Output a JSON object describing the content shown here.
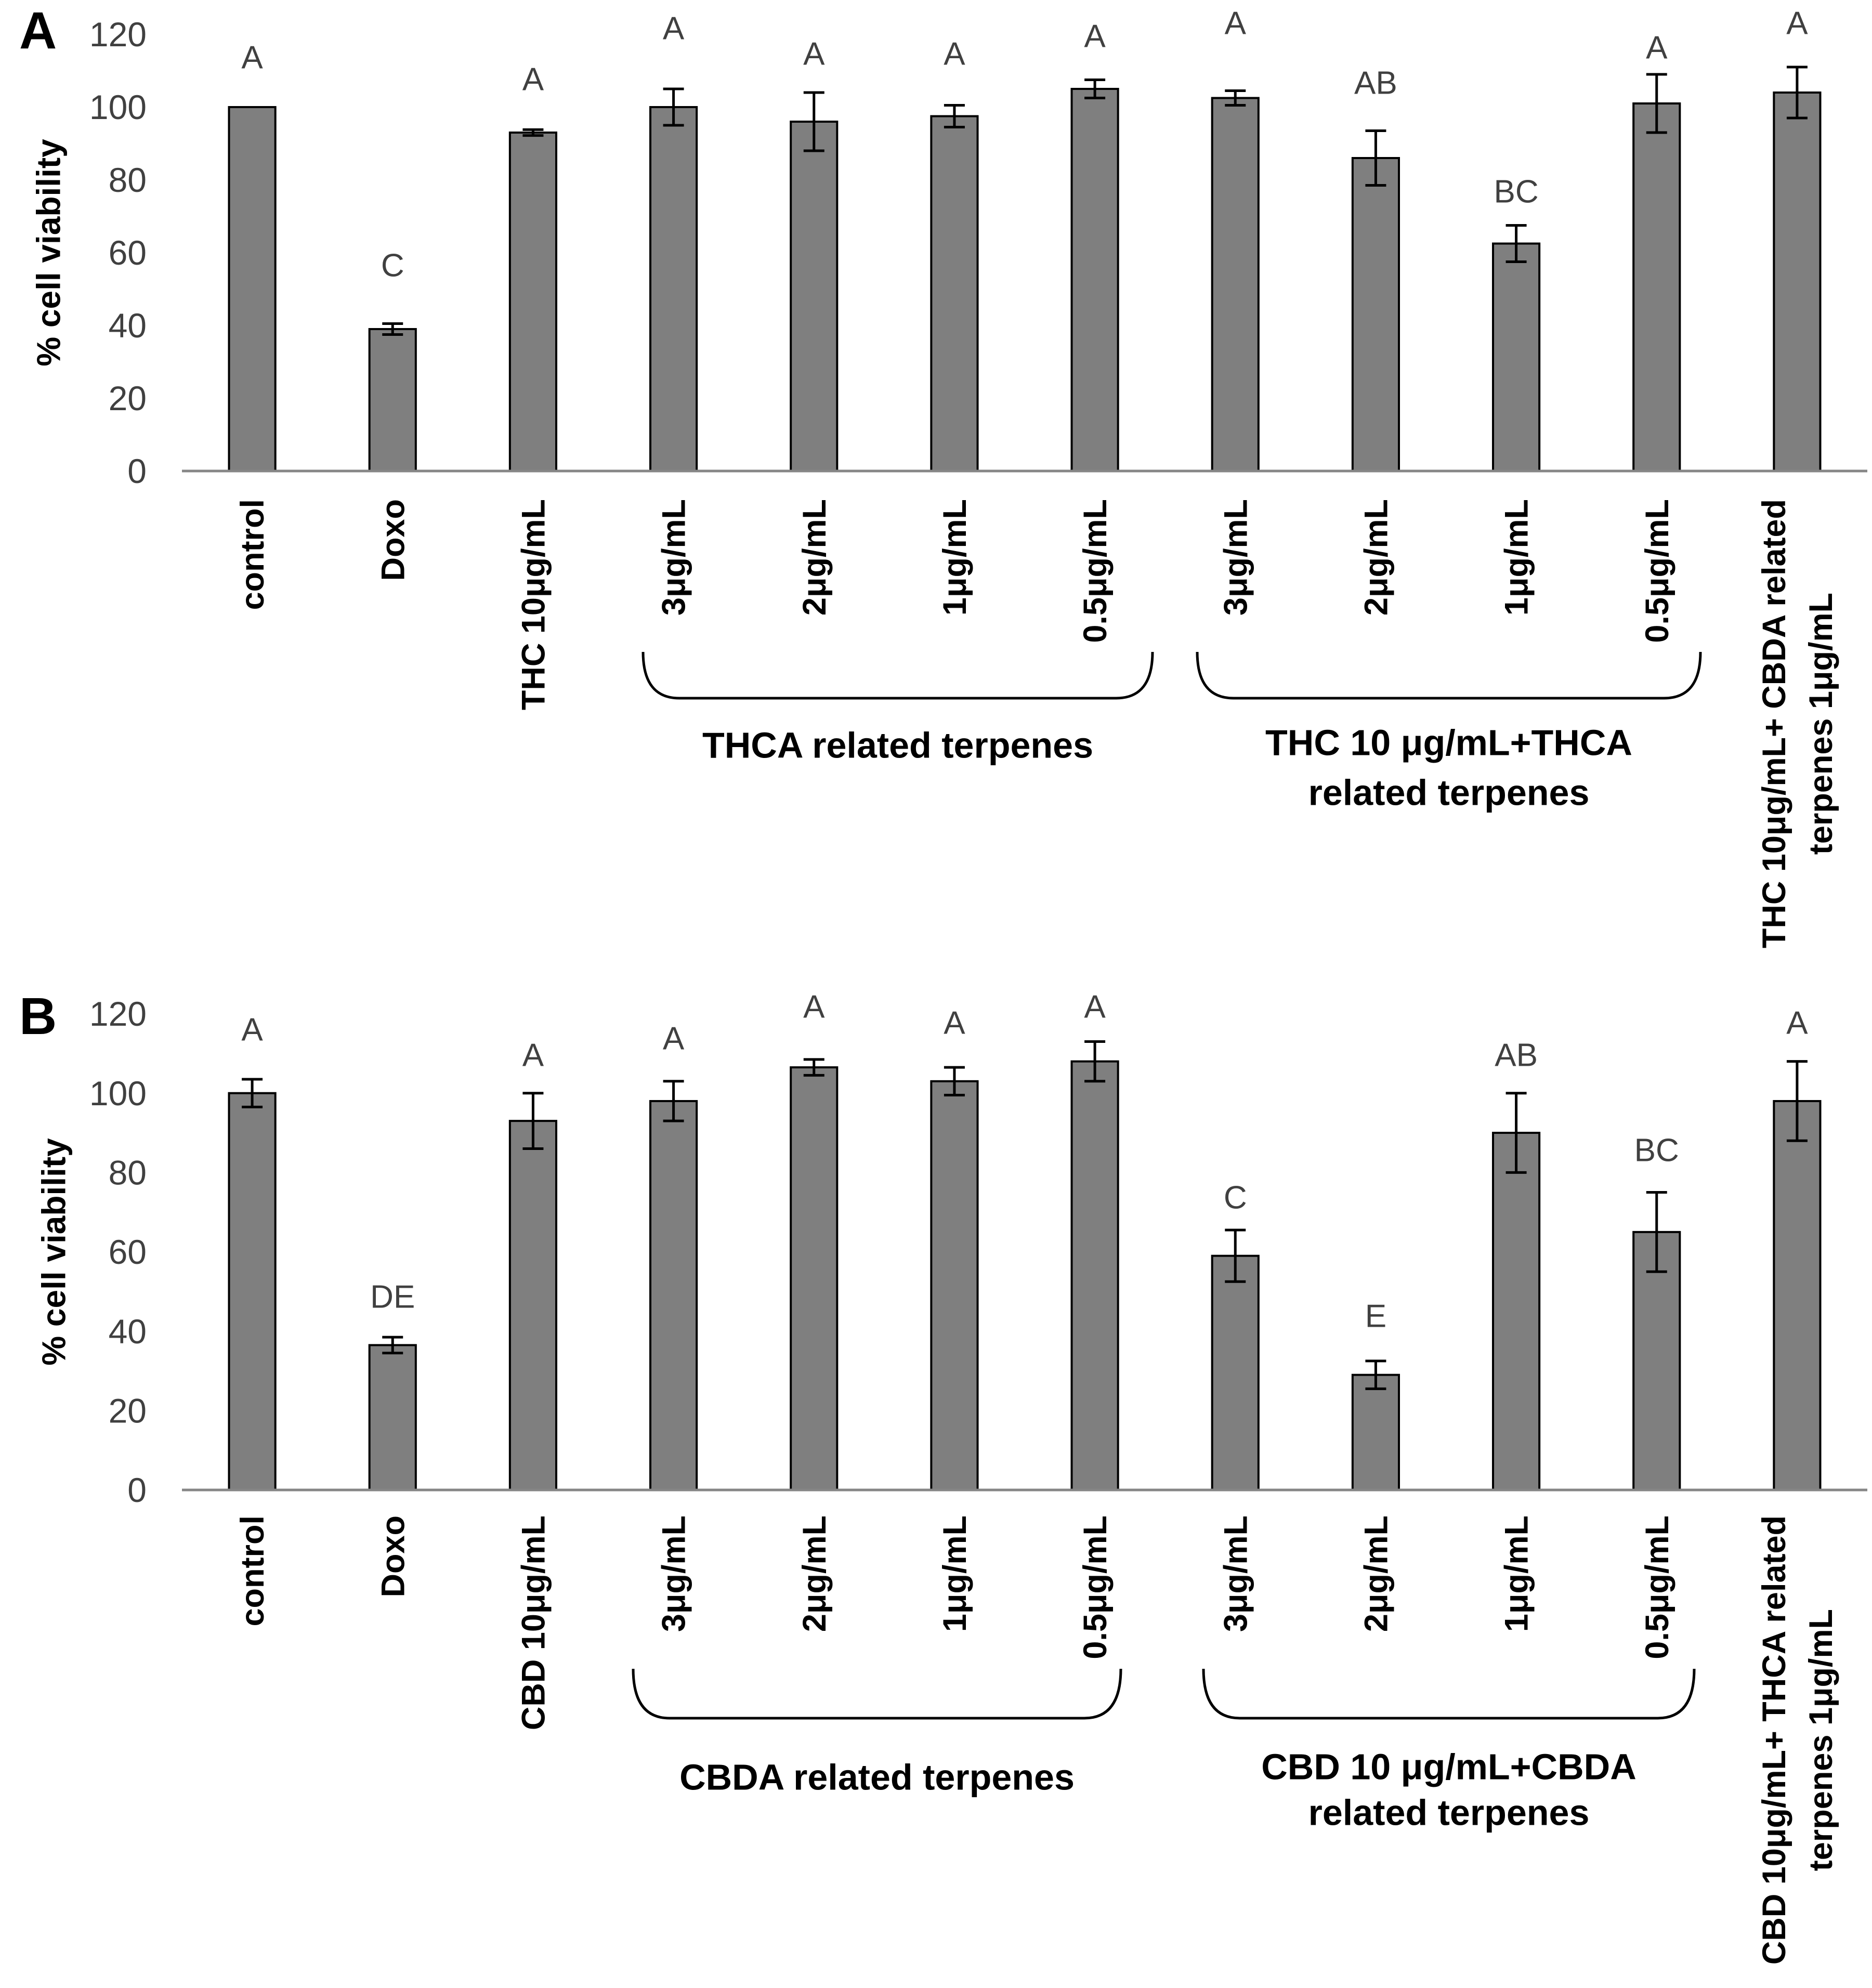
{
  "chart_data": [
    {
      "panel_label": "A",
      "type": "bar",
      "title": "",
      "xlabel": "",
      "ylabel": "% cell viability",
      "ylim": [
        0,
        120
      ],
      "yticks": [
        0,
        20,
        40,
        60,
        80,
        100,
        120
      ],
      "categories": [
        [
          "control"
        ],
        [
          "Doxo"
        ],
        [
          "THC 10μg/mL"
        ],
        [
          "3μg/mL"
        ],
        [
          "2μg/mL"
        ],
        [
          "1μg/mL"
        ],
        [
          "0.5μg/mL"
        ],
        [
          "3μg/mL"
        ],
        [
          "2μg/mL"
        ],
        [
          "1μg/mL"
        ],
        [
          "0.5μg/mL"
        ],
        [
          "THC 10μg/mL+ CBDA related",
          "terpenes 1μg/mL"
        ]
      ],
      "values": [
        100,
        39,
        93,
        100,
        96,
        97.5,
        105,
        102.5,
        86,
        62.5,
        101,
        104
      ],
      "errors": [
        0,
        1.5,
        0.8,
        5,
        8,
        3,
        2.5,
        2,
        7.5,
        5,
        8,
        7
      ],
      "significance_letters": [
        "A",
        "C",
        "A",
        "A",
        "A",
        "A",
        "A",
        "A",
        "AB",
        "BC",
        "A",
        "A"
      ],
      "groups": [
        {
          "label": [
            "THCA related terpenes"
          ],
          "categories_from": 3,
          "categories_to": 6
        },
        {
          "label": [
            "THC 10 μg/mL+THCA",
            "related terpenes"
          ],
          "categories_from": 7,
          "categories_to": 10
        }
      ],
      "bar_color": "#7f7f7f",
      "grid": false
    },
    {
      "panel_label": "B",
      "type": "bar",
      "title": "",
      "xlabel": "",
      "ylabel": "% cell viability",
      "ylim": [
        0,
        120
      ],
      "yticks": [
        0,
        20,
        40,
        60,
        80,
        100,
        120
      ],
      "categories": [
        [
          "control"
        ],
        [
          "Doxo"
        ],
        [
          "CBD 10μg/mL"
        ],
        [
          "3μg/mL"
        ],
        [
          "2μg/mL"
        ],
        [
          "1μg/mL"
        ],
        [
          "0.5μg/mL"
        ],
        [
          "3μg/mL"
        ],
        [
          "2μg/mL"
        ],
        [
          "1μg/mL"
        ],
        [
          "0.5μg/mL"
        ],
        [
          "CBD 10μg/mL+ THCA related",
          "terpenes 1μg/mL"
        ]
      ],
      "values": [
        100,
        36.5,
        93,
        98,
        106.5,
        103,
        108,
        59,
        29,
        90,
        65,
        98
      ],
      "errors": [
        3.5,
        2,
        7,
        5,
        2,
        3.5,
        5,
        6.5,
        3.5,
        10,
        10,
        10
      ],
      "significance_letters": [
        "A",
        "DE",
        "A",
        "A",
        "A",
        "A",
        "A",
        "C",
        "E",
        "AB",
        "BC",
        "A"
      ],
      "groups": [
        {
          "label": [
            "CBDA related terpenes"
          ],
          "categories_from": 3,
          "categories_to": 6
        },
        {
          "label": [
            "CBD 10 μg/mL+CBDA",
            "related terpenes"
          ],
          "categories_from": 7,
          "categories_to": 10
        }
      ],
      "bar_color": "#7f7f7f",
      "grid": false
    }
  ]
}
